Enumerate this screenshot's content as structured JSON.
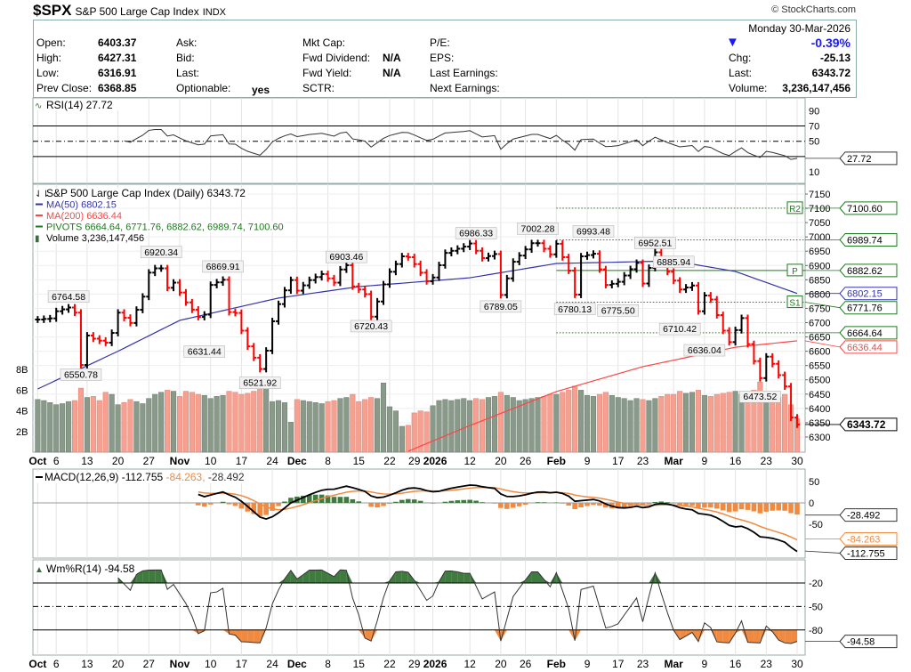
{
  "header": {
    "symbol": "$SPX",
    "name": "S&P 500 Large Cap Index",
    "exchange": "INDX",
    "credit": "© StockCharts.com"
  },
  "info": {
    "date": "Monday  30-Mar-2026",
    "open_label": "Open:",
    "open": "6403.37",
    "high_label": "High:",
    "high": "6427.31",
    "low_label": "Low:",
    "low": "6316.91",
    "prev_label": "Prev Close:",
    "prev": "6368.85",
    "ask_label": "Ask:",
    "bid_label": "Bid:",
    "last_label_mid": "Last:",
    "optionable_label": "Optionable:",
    "optionable": "yes",
    "mktcap_label": "Mkt Cap:",
    "fwd_div_label": "Fwd Dividend:",
    "fwd_div": "N/A",
    "fwd_yield_label": "Fwd Yield:",
    "fwd_yield": "N/A",
    "sctr_label": "SCTR:",
    "pe_label": "P/E:",
    "eps_label": "EPS:",
    "last_earn_label": "Last Earnings:",
    "next_earn_label": "Next Earnings:",
    "pct_change": "-0.39%",
    "chg_label": "Chg:",
    "chg": "-25.13",
    "last_label": "Last:",
    "last": "6343.72",
    "volume_label": "Volume:",
    "volume": "3,236,147,456"
  },
  "chart_data": {
    "type": "ohlc",
    "title": "S&P 500 Large Cap Index (Daily) 6343.72",
    "legend": {
      "ma50": "MA(50) 6802.15",
      "ma200": "MA(200) 6636.44",
      "pivots": "PIVOTS 6664.64, 6771.76, 6882.62, 6989.74, 7100.60",
      "volume": "Volume 3,236,147,456"
    },
    "colors": {
      "up": "#000000",
      "down": "#ff0000",
      "ma50": "#3333aa",
      "ma200": "#ff4444",
      "pivot": "#1e7a1e",
      "vol_up": "#8a9a8a",
      "vol_down": "#f5a090",
      "macd_hist": "#f08a40",
      "wr_fill_hi": "#3f7a3f",
      "wr_fill_lo": "#f08a40"
    },
    "price_axis": {
      "ticks": [
        7150,
        7100,
        7050,
        7000,
        6950,
        6900,
        6850,
        6800,
        6750,
        6700,
        6650,
        6600,
        6550,
        6500,
        6450,
        6400,
        6350,
        6300
      ],
      "range": [
        6290,
        7165
      ]
    },
    "volume_axis": {
      "ticks": [
        "2B",
        "4B",
        "6B",
        "8B"
      ],
      "tick_values": [
        2,
        4,
        6,
        8
      ]
    },
    "close_anchors": [
      [
        "2025-10-01",
        6711
      ],
      [
        "2025-10-03",
        6715
      ],
      [
        "2025-10-06",
        6740
      ],
      [
        "2025-10-08",
        6753
      ],
      [
        "2025-10-09",
        6735
      ],
      [
        "2025-10-10",
        6552
      ],
      [
        "2025-10-13",
        6655
      ],
      [
        "2025-10-14",
        6644
      ],
      [
        "2025-10-16",
        6630
      ],
      [
        "2025-10-17",
        6664
      ],
      [
        "2025-10-20",
        6735
      ],
      [
        "2025-10-22",
        6699
      ],
      [
        "2025-10-24",
        6791
      ],
      [
        "2025-10-27",
        6875
      ],
      [
        "2025-10-28",
        6890
      ],
      [
        "2025-10-29",
        6890
      ],
      [
        "2025-10-30",
        6822
      ],
      [
        "2025-10-31",
        6840
      ],
      [
        "2025-11-04",
        6771
      ],
      [
        "2025-11-06",
        6720
      ],
      [
        "2025-11-07",
        6728
      ],
      [
        "2025-11-10",
        6832
      ],
      [
        "2025-11-12",
        6850
      ],
      [
        "2025-11-13",
        6737
      ],
      [
        "2025-11-14",
        6734
      ],
      [
        "2025-11-17",
        6672
      ],
      [
        "2025-11-18",
        6617
      ],
      [
        "2025-11-20",
        6538
      ],
      [
        "2025-11-21",
        6602
      ],
      [
        "2025-11-24",
        6705
      ],
      [
        "2025-11-25",
        6765
      ],
      [
        "2025-11-26",
        6813
      ],
      [
        "2025-11-28",
        6849
      ],
      [
        "2025-12-01",
        6812
      ],
      [
        "2025-12-03",
        6849
      ],
      [
        "2025-12-05",
        6870
      ],
      [
        "2025-12-09",
        6840
      ],
      [
        "2025-12-10",
        6886
      ],
      [
        "2025-12-11",
        6901
      ],
      [
        "2025-12-12",
        6827
      ],
      [
        "2025-12-15",
        6816
      ],
      [
        "2025-12-16",
        6800
      ],
      [
        "2025-12-17",
        6721
      ],
      [
        "2025-12-18",
        6774
      ],
      [
        "2025-12-19",
        6834
      ],
      [
        "2025-12-22",
        6878
      ],
      [
        "2025-12-24",
        6932
      ],
      [
        "2025-12-26",
        6929
      ],
      [
        "2025-12-29",
        6905
      ],
      [
        "2025-12-31",
        6845
      ],
      [
        "2026-01-02",
        6858
      ],
      [
        "2026-01-06",
        6944
      ],
      [
        "2026-01-09",
        6966
      ],
      [
        "2026-01-12",
        6977
      ],
      [
        "2026-01-14",
        6926
      ],
      [
        "2026-01-16",
        6940
      ],
      [
        "2026-01-20",
        6797
      ],
      [
        "2026-01-22",
        6913
      ],
      [
        "2026-01-27",
        6978
      ],
      [
        "2026-01-28",
        6978
      ],
      [
        "2026-01-30",
        6939
      ],
      [
        "2026-02-02",
        6976
      ],
      [
        "2026-02-04",
        6882
      ],
      [
        "2026-02-05",
        6798
      ],
      [
        "2026-02-06",
        6932
      ],
      [
        "2026-02-10",
        6941
      ],
      [
        "2026-02-12",
        6832
      ],
      [
        "2026-02-13",
        6836
      ],
      [
        "2026-02-17",
        6843
      ],
      [
        "2026-02-20",
        6909
      ],
      [
        "2026-02-23",
        6837
      ],
      [
        "2026-02-25",
        6946
      ],
      [
        "2026-02-27",
        6878
      ],
      [
        "2026-03-03",
        6816
      ],
      [
        "2026-03-05",
        6830
      ],
      [
        "2026-03-06",
        6740
      ],
      [
        "2026-03-09",
        6795
      ],
      [
        "2026-03-10",
        6781
      ],
      [
        "2026-03-12",
        6672
      ],
      [
        "2026-03-13",
        6632
      ],
      [
        "2026-03-17",
        6716
      ],
      [
        "2026-03-18",
        6625
      ],
      [
        "2026-03-20",
        6506
      ],
      [
        "2026-03-23",
        6581
      ],
      [
        "2026-03-24",
        6556
      ],
      [
        "2026-03-26",
        6477
      ],
      [
        "2026-03-27",
        6368
      ],
      [
        "2026-03-30",
        6343.72
      ]
    ],
    "ma50_anchors": [
      [
        "2025-10-01",
        6468
      ],
      [
        "2025-10-20",
        6600
      ],
      [
        "2025-11-03",
        6708
      ],
      [
        "2025-11-25",
        6786
      ],
      [
        "2025-12-15",
        6826
      ],
      [
        "2026-01-12",
        6857
      ],
      [
        "2026-02-02",
        6907
      ],
      [
        "2026-03-02",
        6916
      ],
      [
        "2026-03-16",
        6879
      ],
      [
        "2026-03-30",
        6802.15
      ]
    ],
    "ma200_anchors": [
      [
        "2025-12-26",
        6250
      ],
      [
        "2026-01-12",
        6340
      ],
      [
        "2026-02-02",
        6459
      ],
      [
        "2026-02-23",
        6546
      ],
      [
        "2026-03-16",
        6614
      ],
      [
        "2026-03-30",
        6636.44
      ]
    ],
    "volume_billions": [
      5.1,
      5.0,
      4.8,
      4.6,
      4.7,
      4.9,
      5.0,
      6.2,
      5.3,
      5.4,
      5.0,
      5.8,
      5.6,
      4.6,
      4.8,
      5.1,
      4.9,
      4.7,
      5.2,
      5.6,
      5.8,
      6.0,
      5.9,
      5.4,
      5.9,
      5.8,
      5.6,
      5.5,
      5.2,
      5.4,
      5.5,
      5.9,
      5.8,
      5.6,
      5.7,
      5.9,
      6.4,
      6.2,
      4.9,
      5.0,
      4.8,
      2.9,
      5.1,
      5.0,
      4.9,
      4.8,
      4.7,
      4.9,
      5.0,
      5.2,
      5.3,
      5.6,
      4.9,
      5.1,
      5.3,
      5.2,
      6.7,
      4.4,
      4.0,
      2.5,
      2.6,
      3.8,
      4.0,
      3.9,
      4.5,
      5.0,
      5.1,
      5.0,
      5.1,
      5.2,
      5.0,
      5.2,
      5.1,
      5.3,
      5.4,
      5.8,
      5.5,
      5.3,
      5.0,
      5.1,
      5.2,
      5.3,
      5.4,
      5.6,
      5.6,
      5.8,
      6.0,
      6.4,
      6.0,
      5.5,
      5.4,
      5.6,
      5.8,
      5.5,
      5.3,
      5.2,
      5.0,
      5.2,
      5.1,
      5.0,
      5.2,
      5.4,
      5.6,
      5.6,
      5.9,
      5.7,
      5.8,
      6.0,
      5.5,
      5.4,
      5.6,
      5.7,
      5.8,
      5.9,
      5.6,
      5.5,
      6.0,
      6.8,
      5.7,
      4.9,
      5.3,
      5.6,
      4.6,
      3.24
    ],
    "annotations": [
      {
        "date": "2025-10-08",
        "value": "6764.58",
        "pos": "above"
      },
      {
        "date": "2025-10-10",
        "value": "6550.78",
        "pos": "below"
      },
      {
        "date": "2025-10-29",
        "value": "6920.34",
        "pos": "above"
      },
      {
        "date": "2025-11-07",
        "value": "6631.44",
        "pos": "below"
      },
      {
        "date": "2025-11-12",
        "value": "6869.91",
        "pos": "above"
      },
      {
        "date": "2025-11-20",
        "value": "6521.92",
        "pos": "below"
      },
      {
        "date": "2025-12-11",
        "value": "6903.46",
        "pos": "above"
      },
      {
        "date": "2025-12-17",
        "value": "6720.43",
        "pos": "below"
      },
      {
        "date": "2026-01-13",
        "value": "6986.33",
        "pos": "above"
      },
      {
        "date": "2026-01-20",
        "value": "6789.05",
        "pos": "below"
      },
      {
        "date": "2026-01-28",
        "value": "7002.28",
        "pos": "above"
      },
      {
        "date": "2026-02-05",
        "value": "6780.13",
        "pos": "below"
      },
      {
        "date": "2026-02-10",
        "value": "6993.48",
        "pos": "above"
      },
      {
        "date": "2026-02-17",
        "value": "6775.50",
        "pos": "below"
      },
      {
        "date": "2026-02-25",
        "value": "6952.51",
        "pos": "above"
      },
      {
        "date": "2026-03-02",
        "value": "6885.94",
        "pos": "above"
      },
      {
        "date": "2026-03-03",
        "value": "6710.42",
        "pos": "below"
      },
      {
        "date": "2026-03-09",
        "value": "6636.04",
        "pos": "below"
      },
      {
        "date": "2026-03-20",
        "value": "6473.52",
        "pos": "below"
      }
    ],
    "pivots": {
      "start": "2026-02-02",
      "levels": [
        {
          "label": "S1",
          "value": 6771.76
        },
        {
          "label": "P",
          "value": 6882.62
        },
        {
          "label": "R2",
          "value": 7100.6
        },
        {
          "label": "",
          "value": 6989.74
        },
        {
          "label": "",
          "value": 6664.64
        }
      ]
    },
    "price_tags": [
      {
        "text": "7100.60",
        "value": 7100.6,
        "color": "#1e7a1e"
      },
      {
        "text": "6989.74",
        "value": 6989.74,
        "color": "#1e7a1e"
      },
      {
        "text": "6882.62",
        "value": 6882.62,
        "color": "#1e7a1e"
      },
      {
        "text": "6802.15",
        "value": 6802.15,
        "color": "#3333aa"
      },
      {
        "text": "6771.76",
        "value": 6771.76,
        "color": "#1e7a1e"
      },
      {
        "text": "6664.64",
        "value": 6664.64,
        "color": "#1e7a1e"
      },
      {
        "text": "6636.44",
        "value": 6636.44,
        "color": "#ff4444"
      },
      {
        "text": "6343.72",
        "value": 6343.72,
        "color": "#000000",
        "bold": true
      }
    ],
    "x_ticks": [
      {
        "label": "Oct",
        "date": "2025-10-01"
      },
      {
        "label": "6",
        "date": "2025-10-06"
      },
      {
        "label": "13",
        "date": "2025-10-13"
      },
      {
        "label": "20",
        "date": "2025-10-20"
      },
      {
        "label": "27",
        "date": "2025-10-27"
      },
      {
        "label": "Nov",
        "date": "2025-11-03"
      },
      {
        "label": "10",
        "date": "2025-11-10"
      },
      {
        "label": "17",
        "date": "2025-11-17"
      },
      {
        "label": "24",
        "date": "2025-11-24"
      },
      {
        "label": "Dec",
        "date": "2025-12-01"
      },
      {
        "label": "8",
        "date": "2025-12-08"
      },
      {
        "label": "15",
        "date": "2025-12-15"
      },
      {
        "label": "22",
        "date": "2025-12-22"
      },
      {
        "label": "29",
        "date": "2025-12-29"
      },
      {
        "label": "2026",
        "date": "2026-01-02"
      },
      {
        "label": "12",
        "date": "2026-01-12"
      },
      {
        "label": "20",
        "date": "2026-01-20"
      },
      {
        "label": "26",
        "date": "2026-01-26"
      },
      {
        "label": "Feb",
        "date": "2026-02-02"
      },
      {
        "label": "9",
        "date": "2026-02-09"
      },
      {
        "label": "17",
        "date": "2026-02-17"
      },
      {
        "label": "23",
        "date": "2026-02-23"
      },
      {
        "label": "Mar",
        "date": "2026-03-02"
      },
      {
        "label": "9",
        "date": "2026-03-09"
      },
      {
        "label": "16",
        "date": "2026-03-16"
      },
      {
        "label": "23",
        "date": "2026-03-23"
      },
      {
        "label": "30",
        "date": "2026-03-30"
      }
    ],
    "rsi": {
      "label": "RSI(14) 27.72",
      "value": 27.72,
      "ticks": [
        90,
        70,
        50,
        10
      ],
      "tag": "27.72"
    },
    "macd": {
      "label": "MACD(12,26,9) -112.755",
      "signal_label": "-84.263,",
      "hist_label": "-28.492",
      "ticks": [
        50,
        0,
        -50
      ],
      "tags": [
        {
          "text": "-28.492",
          "value": -28.492,
          "color": "#333"
        },
        {
          "text": "-84.263",
          "value": -84.263,
          "color": "#f08a40"
        },
        {
          "text": "-112.755",
          "value": -112.755,
          "color": "#333"
        }
      ]
    },
    "williams_r": {
      "label": "Wm%R(14) -94.58",
      "value": -94.58,
      "ticks": [
        -20,
        -50,
        -80
      ],
      "tag": "-94.58"
    }
  }
}
